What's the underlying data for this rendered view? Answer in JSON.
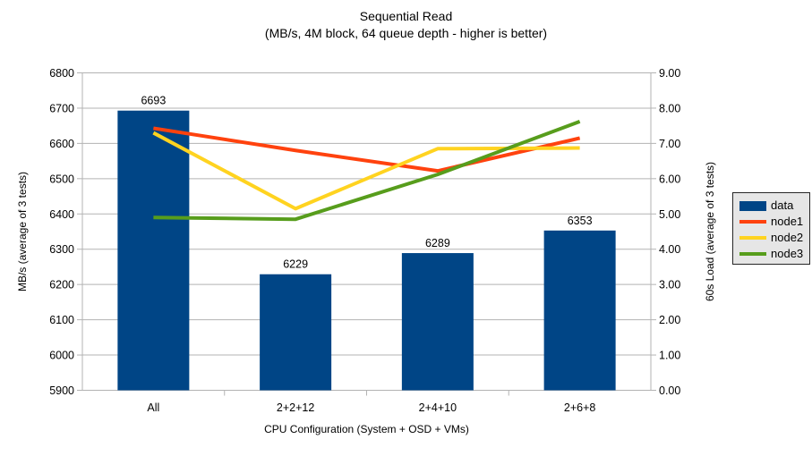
{
  "title": "Sequential Read",
  "subtitle": "(MB/s, 4M block, 64 queue depth - higher is better)",
  "chart_data": {
    "type": "bar+line combo",
    "categories": [
      "All",
      "2+2+12",
      "2+4+10",
      "2+6+8"
    ],
    "bar_series": {
      "name": "data",
      "axis": "left",
      "color": "#004586",
      "values": [
        6693,
        6229,
        6289,
        6353
      ],
      "data_labels": [
        "6693",
        "6229",
        "6289",
        "6353"
      ]
    },
    "line_series": [
      {
        "name": "node1",
        "axis": "right",
        "color": "#ff420e",
        "values": [
          7.43,
          6.8,
          6.22,
          7.15
        ]
      },
      {
        "name": "node2",
        "axis": "right",
        "color": "#ffd320",
        "values": [
          7.3,
          5.15,
          6.85,
          6.87
        ]
      },
      {
        "name": "node3",
        "axis": "right",
        "color": "#579d1c",
        "values": [
          4.9,
          4.85,
          6.12,
          7.62
        ]
      }
    ],
    "xlabel": "CPU Configuration (System + OSD + VMs)",
    "ylabel_left": "MB/s (average of 3 tests)",
    "ylabel_right": "60s Load (average of 3 tests)",
    "y_left": {
      "min": 5900,
      "max": 6800,
      "step": 100
    },
    "y_right": {
      "min": 0,
      "max": 9,
      "step": 1,
      "decimals": 2
    },
    "grid": true,
    "legend_position": "right",
    "colors": {
      "axis": "#b3b3b3",
      "grid": "#b3b3b3",
      "text": "#000000",
      "legend_bg": "#e6e6e6",
      "legend_border": "#262626"
    }
  }
}
